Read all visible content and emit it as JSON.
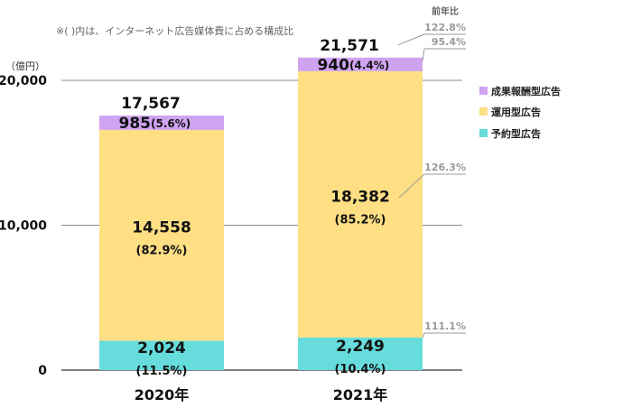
{
  "chart_data": {
    "type": "bar",
    "stacked": true,
    "note": "※(  )内は、インターネット広告媒体費に占める構成比",
    "y_unit": "（億円）",
    "categories": [
      "2020年",
      "2021年"
    ],
    "ylim": [
      0,
      20000
    ],
    "yticks": [
      {
        "value": 0,
        "label": "0"
      },
      {
        "value": 10000,
        "label": "10,000"
      },
      {
        "value": 20000,
        "label": "20,000"
      }
    ],
    "grid": true,
    "legend_position": "right",
    "totals": [
      {
        "value": 17567,
        "label": "17,567"
      },
      {
        "value": 21571,
        "label": "21,571"
      }
    ],
    "series": [
      {
        "name": "予約型広告",
        "color": "#66dcdc",
        "values": [
          2024,
          2249
        ],
        "labels": [
          "2,024",
          "2,249"
        ],
        "shares": [
          "(11.5%)",
          "(10.4%)"
        ]
      },
      {
        "name": "運用型広告",
        "color": "#fedf84",
        "values": [
          14558,
          18382
        ],
        "labels": [
          "14,558",
          "18,382"
        ],
        "shares": [
          "(82.9%)",
          "(85.2%)"
        ]
      },
      {
        "name": "成果報酬型広告",
        "color": "#d0a3f0",
        "values": [
          985,
          940
        ],
        "labels": [
          "985",
          "940"
        ],
        "shares": [
          "(5.6%)",
          "(4.4%)"
        ]
      }
    ],
    "yoy": {
      "title": "前年比",
      "total": "122.8%",
      "series": [
        "111.1%",
        "126.3%",
        "95.4%"
      ]
    }
  }
}
